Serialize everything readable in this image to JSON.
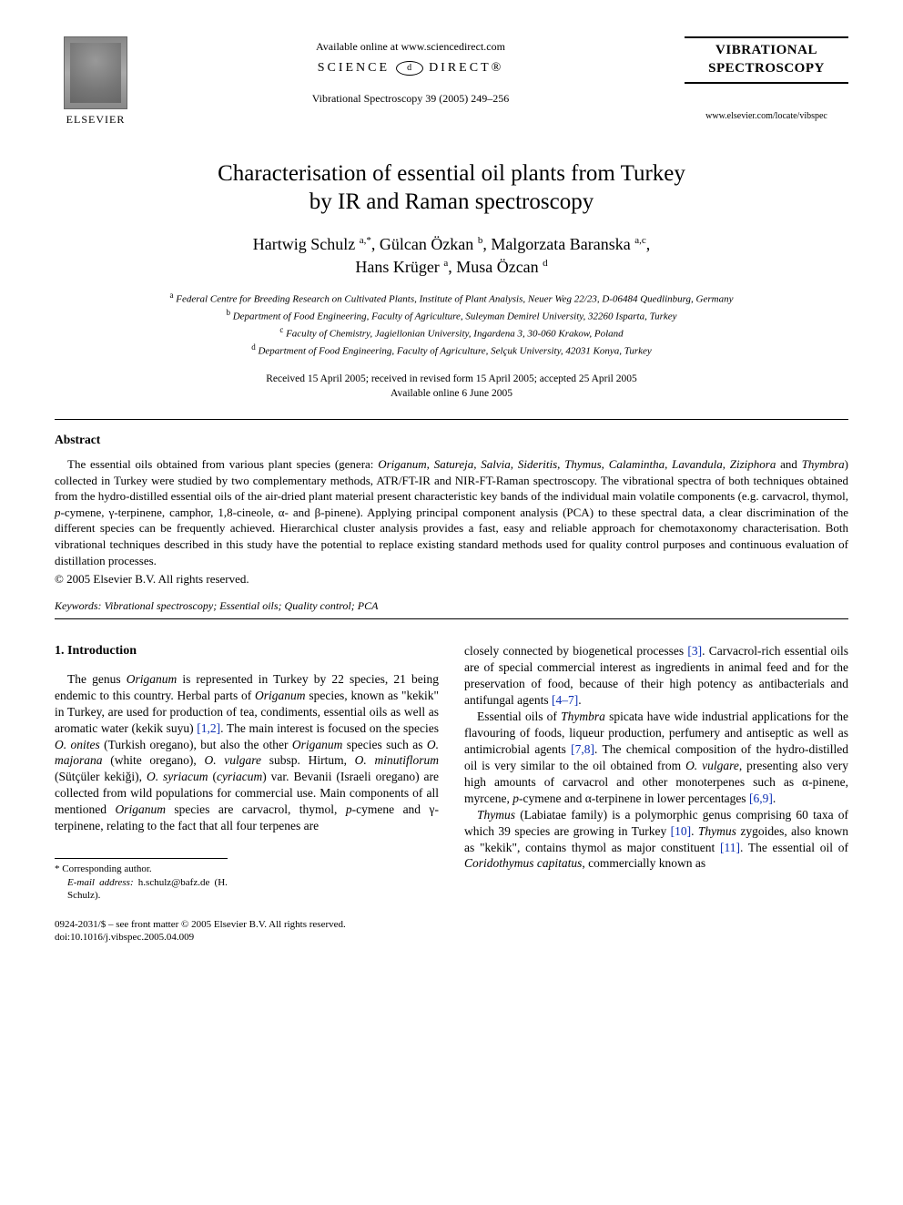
{
  "header": {
    "publisher_label": "ELSEVIER",
    "available_online": "Available online at www.sciencedirect.com",
    "sciencedirect_left": "SCIENCE",
    "sciencedirect_mid": "d",
    "sciencedirect_right": "DIRECT®",
    "citation": "Vibrational Spectroscopy 39 (2005) 249–256",
    "journal_title_l1": "VIBRATIONAL",
    "journal_title_l2": "SPECTROSCOPY",
    "journal_url": "www.elsevier.com/locate/vibspec"
  },
  "article": {
    "title_l1": "Characterisation of essential oil plants from Turkey",
    "title_l2": "by IR and Raman spectroscopy",
    "authors_l1_html": "Hartwig Schulz <sup>a,*</sup>, Gülcan Özkan <sup>b</sup>, Malgorzata Baranska <sup>a,c</sup>,",
    "authors_l2_html": "Hans Krüger <sup>a</sup>, Musa Özcan <sup>d</sup>",
    "affiliations": [
      "a Federal Centre for Breeding Research on Cultivated Plants, Institute of Plant Analysis, Neuer Weg 22/23, D-06484 Quedlinburg, Germany",
      "b Department of Food Engineering, Faculty of Agriculture, Suleyman Demirel University, 32260 Isparta, Turkey",
      "c Faculty of Chemistry, Jagiellonian University, Ingardena 3, 30-060 Krakow, Poland",
      "d Department of Food Engineering, Faculty of Agriculture, Selçuk University, 42031 Konya, Turkey"
    ],
    "dates_l1": "Received 15 April 2005; received in revised form 15 April 2005; accepted 25 April 2005",
    "dates_l2": "Available online 6 June 2005"
  },
  "abstract": {
    "heading": "Abstract",
    "para1": "The essential oils obtained from various plant species (genera: Origanum, Satureja, Salvia, Sideritis, Thymus, Calamintha, Lavandula, Ziziphora and Thymbra) collected in Turkey were studied by two complementary methods, ATR/FT-IR and NIR-FT-Raman spectroscopy. The vibrational spectra of both techniques obtained from the hydro-distilled essential oils of the air-dried plant material present characteristic key bands of the individual main volatile components (e.g. carvacrol, thymol, p-cymene, γ-terpinene, camphor, 1,8-cineole, α- and β-pinene). Applying principal component analysis (PCA) to these spectral data, a clear discrimination of the different species can be frequently achieved. Hierarchical cluster analysis provides a fast, easy and reliable approach for chemotaxonomy characterisation. Both vibrational techniques described in this study have the potential to replace existing standard methods used for quality control purposes and continuous evaluation of distillation processes.",
    "copyright": "© 2005 Elsevier B.V. All rights reserved.",
    "keywords_label": "Keywords:",
    "keywords_value": " Vibrational spectroscopy; Essential oils; Quality control; PCA"
  },
  "body": {
    "sec1_heading": "1. Introduction",
    "col1_p1": "The genus Origanum is represented in Turkey by 22 species, 21 being endemic to this country. Herbal parts of Origanum species, known as \"kekik\" in Turkey, are used for production of tea, condiments, essential oils as well as aromatic water (kekik suyu) [1,2]. The main interest is focused on the species O. onites (Turkish oregano), but also the other Origanum species such as O. majorana (white oregano), O. vulgare subsp. Hirtum, O. minutiflorum (Sütçüler kekiği), O. syriacum (cyriacum) var. Bevanii (Israeli oregano) are collected from wild populations for commercial use. Main components of all mentioned Origanum species are carvacrol, thymol, p-cymene and γ-terpinene, relating to the fact that all four terpenes are",
    "col2_p1": "closely connected by biogenetical processes [3]. Carvacrol-rich essential oils are of special commercial interest as ingredients in animal feed and for the preservation of food, because of their high potency as antibacterials and antifungal agents [4–7].",
    "col2_p2": "Essential oils of Thymbra spicata have wide industrial applications for the flavouring of foods, liqueur production, perfumery and antiseptic as well as antimicrobial agents [7,8]. The chemical composition of the hydro-distilled oil is very similar to the oil obtained from O. vulgare, presenting also very high amounts of carvacrol and other monoterpenes such as α-pinene, myrcene, p-cymene and α-terpinene in lower percentages [6,9].",
    "col2_p3": "Thymus (Labiatae family) is a polymorphic genus comprising 60 taxa of which 39 species are growing in Turkey [10]. Thymus zygoides, also known as \"kekik\", contains thymol as major constituent [11]. The essential oil of Coridothymus capitatus, commercially known as"
  },
  "footnotes": {
    "corr": "* Corresponding author.",
    "email_label": "E-mail address:",
    "email_value": " h.schulz@bafz.de (H. Schulz)."
  },
  "bottom": {
    "line1": "0924-2031/$ – see front matter © 2005 Elsevier B.V. All rights reserved.",
    "line2": "doi:10.1016/j.vibspec.2005.04.009"
  },
  "colors": {
    "ref_link": "#0a2db3",
    "text": "#000000",
    "bg": "#ffffff"
  }
}
